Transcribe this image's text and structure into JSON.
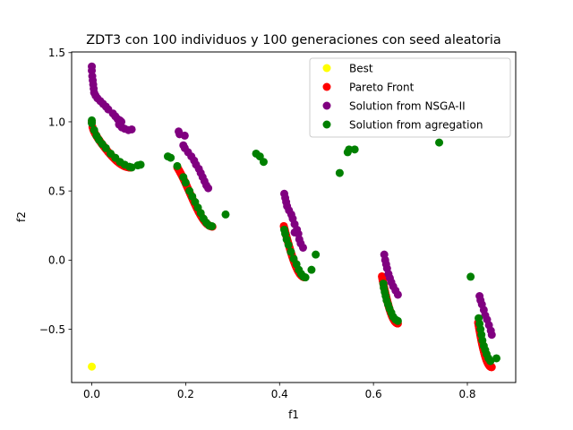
{
  "chart_data": {
    "type": "scatter",
    "title": "ZDT3 con 100 individuos y 100 generaciones con seed aleatoria",
    "xlabel": "f1",
    "ylabel": "f2",
    "xlim": [
      -0.043,
      0.903
    ],
    "ylim": [
      -0.885,
      1.505
    ],
    "xticks": [
      0.0,
      0.2,
      0.4,
      0.6,
      0.8
    ],
    "xtick_labels": [
      "0.0",
      "0.2",
      "0.4",
      "0.6",
      "0.8"
    ],
    "yticks": [
      -0.5,
      0.0,
      0.5,
      1.0,
      1.5
    ],
    "ytick_labels": [
      "−0.5",
      "0.0",
      "0.5",
      "1.0",
      "1.5"
    ],
    "grid": false,
    "legend_position": "top-right",
    "series": [
      {
        "name": "Pareto Front",
        "color": "#ff0000",
        "segments": [
          [
            0.0,
            0.083
          ],
          [
            0.182,
            0.257
          ],
          [
            0.409,
            0.453
          ],
          [
            0.618,
            0.652
          ],
          [
            0.823,
            0.852
          ]
        ],
        "points_per_segment": 60
      },
      {
        "name": "Solution from NSGA-II",
        "color": "#800080",
        "points": [
          [
            0.0,
            1.4
          ],
          [
            0.0,
            1.37
          ],
          [
            0.001,
            1.33
          ],
          [
            0.002,
            1.3
          ],
          [
            0.003,
            1.27
          ],
          [
            0.004,
            1.24
          ],
          [
            0.005,
            1.21
          ],
          [
            0.008,
            1.19
          ],
          [
            0.012,
            1.17
          ],
          [
            0.018,
            1.15
          ],
          [
            0.024,
            1.13
          ],
          [
            0.03,
            1.11
          ],
          [
            0.035,
            1.09
          ],
          [
            0.045,
            1.06
          ],
          [
            0.05,
            1.04
          ],
          [
            0.055,
            1.02
          ],
          [
            0.06,
            1.01
          ],
          [
            0.063,
            1.0
          ],
          [
            0.058,
            0.98
          ],
          [
            0.064,
            0.96
          ],
          [
            0.07,
            0.95
          ],
          [
            0.078,
            0.94
          ],
          [
            0.085,
            0.945
          ],
          [
            0.185,
            0.93
          ],
          [
            0.187,
            0.91
          ],
          [
            0.198,
            0.9
          ],
          [
            0.195,
            0.83
          ],
          [
            0.198,
            0.81
          ],
          [
            0.205,
            0.78
          ],
          [
            0.212,
            0.75
          ],
          [
            0.218,
            0.72
          ],
          [
            0.222,
            0.69
          ],
          [
            0.228,
            0.66
          ],
          [
            0.232,
            0.63
          ],
          [
            0.236,
            0.6
          ],
          [
            0.24,
            0.57
          ],
          [
            0.244,
            0.54
          ],
          [
            0.248,
            0.52
          ],
          [
            0.41,
            0.48
          ],
          [
            0.412,
            0.45
          ],
          [
            0.414,
            0.42
          ],
          [
            0.416,
            0.39
          ],
          [
            0.42,
            0.36
          ],
          [
            0.425,
            0.33
          ],
          [
            0.428,
            0.3
          ],
          [
            0.432,
            0.26
          ],
          [
            0.437,
            0.22
          ],
          [
            0.432,
            0.2
          ],
          [
            0.44,
            0.19
          ],
          [
            0.442,
            0.15
          ],
          [
            0.445,
            0.12
          ],
          [
            0.45,
            0.09
          ],
          [
            0.623,
            0.04
          ],
          [
            0.625,
            0.0
          ],
          [
            0.627,
            -0.03
          ],
          [
            0.629,
            -0.06
          ],
          [
            0.632,
            -0.1
          ],
          [
            0.635,
            -0.13
          ],
          [
            0.638,
            -0.16
          ],
          [
            0.642,
            -0.19
          ],
          [
            0.647,
            -0.22
          ],
          [
            0.652,
            -0.25
          ],
          [
            0.826,
            -0.26
          ],
          [
            0.828,
            -0.29
          ],
          [
            0.831,
            -0.32
          ],
          [
            0.835,
            -0.36
          ],
          [
            0.838,
            -0.4
          ],
          [
            0.842,
            -0.43
          ],
          [
            0.846,
            -0.47
          ],
          [
            0.85,
            -0.51
          ],
          [
            0.852,
            -0.54
          ]
        ]
      },
      {
        "name": "Solution from agregation",
        "color": "#008000",
        "points": [
          [
            0.0,
            1.01
          ],
          [
            0.0,
            0.99
          ],
          [
            0.005,
            0.94
          ],
          [
            0.01,
            0.9
          ],
          [
            0.015,
            0.87
          ],
          [
            0.022,
            0.84
          ],
          [
            0.03,
            0.81
          ],
          [
            0.04,
            0.77
          ],
          [
            0.05,
            0.74
          ],
          [
            0.06,
            0.71
          ],
          [
            0.07,
            0.69
          ],
          [
            0.08,
            0.675
          ],
          [
            0.085,
            0.67
          ],
          [
            0.098,
            0.685
          ],
          [
            0.104,
            0.69
          ],
          [
            0.162,
            0.75
          ],
          [
            0.168,
            0.74
          ],
          [
            0.182,
            0.68
          ],
          [
            0.195,
            0.6
          ],
          [
            0.2,
            0.56
          ],
          [
            0.208,
            0.5
          ],
          [
            0.214,
            0.46
          ],
          [
            0.22,
            0.42
          ],
          [
            0.226,
            0.38
          ],
          [
            0.232,
            0.34
          ],
          [
            0.238,
            0.3
          ],
          [
            0.244,
            0.27
          ],
          [
            0.25,
            0.25
          ],
          [
            0.256,
            0.245
          ],
          [
            0.285,
            0.33
          ],
          [
            0.35,
            0.77
          ],
          [
            0.358,
            0.75
          ],
          [
            0.366,
            0.71
          ],
          [
            0.528,
            0.63
          ],
          [
            0.545,
            0.78
          ],
          [
            0.548,
            0.8
          ],
          [
            0.56,
            0.8
          ],
          [
            0.74,
            0.85
          ],
          [
            0.41,
            0.22
          ],
          [
            0.412,
            0.19
          ],
          [
            0.415,
            0.15
          ],
          [
            0.419,
            0.11
          ],
          [
            0.424,
            0.06
          ],
          [
            0.43,
            0.01
          ],
          [
            0.436,
            -0.03
          ],
          [
            0.441,
            -0.07
          ],
          [
            0.446,
            -0.1
          ],
          [
            0.451,
            -0.12
          ],
          [
            0.455,
            -0.125
          ],
          [
            0.468,
            -0.07
          ],
          [
            0.477,
            0.04
          ],
          [
            0.621,
            -0.17
          ],
          [
            0.622,
            -0.2
          ],
          [
            0.624,
            -0.23
          ],
          [
            0.626,
            -0.26
          ],
          [
            0.628,
            -0.29
          ],
          [
            0.631,
            -0.32
          ],
          [
            0.634,
            -0.35
          ],
          [
            0.638,
            -0.38
          ],
          [
            0.642,
            -0.41
          ],
          [
            0.647,
            -0.43
          ],
          [
            0.652,
            -0.44
          ],
          [
            0.807,
            -0.12
          ],
          [
            0.824,
            -0.42
          ],
          [
            0.826,
            -0.46
          ],
          [
            0.828,
            -0.5
          ],
          [
            0.83,
            -0.54
          ],
          [
            0.832,
            -0.58
          ],
          [
            0.835,
            -0.62
          ],
          [
            0.838,
            -0.65
          ],
          [
            0.841,
            -0.68
          ],
          [
            0.845,
            -0.71
          ],
          [
            0.849,
            -0.73
          ],
          [
            0.862,
            -0.71
          ]
        ]
      },
      {
        "name": "Best",
        "color": "#ffff00",
        "points": [
          [
            0.0,
            -0.77
          ]
        ]
      }
    ],
    "legend_order": [
      "Best",
      "Pareto Front",
      "Solution from NSGA-II",
      "Solution from agregation"
    ]
  }
}
